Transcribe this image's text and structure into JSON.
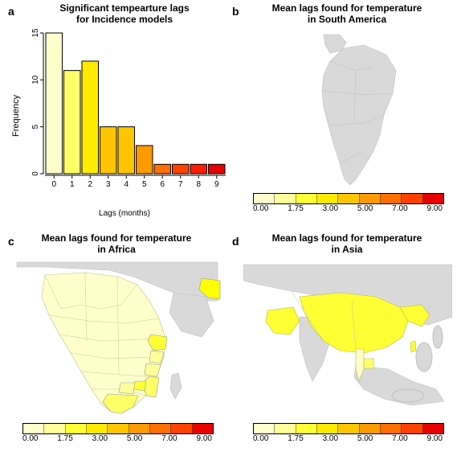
{
  "labels": {
    "a": "a",
    "b": "b",
    "c": "c",
    "d": "d"
  },
  "panel_a": {
    "type": "histogram",
    "title": "Significant tempearture lags\nfor Incidence models",
    "xlabel": "Lags (months)",
    "ylabel": "Frequency",
    "xlim": [
      0,
      9
    ],
    "ylim": [
      0,
      15
    ],
    "ytick_step": 5,
    "yticks": [
      0,
      5,
      10,
      15
    ],
    "categories": [
      0,
      1,
      2,
      3,
      4,
      5,
      6,
      7,
      8,
      9
    ],
    "values": [
      15,
      11,
      12,
      5,
      5,
      3,
      1,
      1,
      1,
      1
    ],
    "bar_colors": [
      "#ffffcc",
      "#ffff66",
      "#ffeb00",
      "#ffc600",
      "#ffc600",
      "#ff9a00",
      "#ff6e00",
      "#ff4200",
      "#ff1c00",
      "#e60000"
    ],
    "bar_border": "#000000",
    "background": "#ffffff",
    "axis_color": "#000000",
    "title_fontsize": 12,
    "label_fontsize": 11
  },
  "panel_b": {
    "type": "map",
    "title": "Mean lags found for temperature\nin South America",
    "base_fill": "#d9d9d9",
    "base_stroke": "#bfbfbf",
    "highlighted": [],
    "region_colors": {}
  },
  "panel_c": {
    "type": "map",
    "title": "Mean lags found for temperature\nin Africa",
    "base_fill": "#d9d9d9",
    "base_stroke": "#bfbfbf",
    "highlighted": [
      "africa_block",
      "ethiopia",
      "kenya",
      "tanzania",
      "mozambique",
      "zimbabwe",
      "botswana",
      "south_africa",
      "iran"
    ],
    "region_colors": {
      "africa_block": "#ffffcc",
      "ethiopia": "#ffff33",
      "kenya": "#ffff99",
      "tanzania": "#ffff99",
      "mozambique": "#ffff66",
      "zimbabwe": "#ffff33",
      "botswana": "#ffff99",
      "south_africa": "#ffff66",
      "iran": "#ffff00"
    }
  },
  "panel_d": {
    "type": "map",
    "title": "Mean lags found for temperature\nin Asia",
    "base_fill": "#d9d9d9",
    "base_stroke": "#bfbfbf",
    "highlighted": [
      "china",
      "taiwan",
      "cambodia",
      "thailand",
      "pakistan_afghan",
      "ne_china"
    ],
    "region_colors": {
      "china": "#ffff33",
      "taiwan": "#ffff33",
      "cambodia": "#ffff66",
      "thailand": "#ffffcc",
      "pakistan_afghan": "#ffff33",
      "ne_china": "#ffff33"
    }
  },
  "palette": {
    "colors": [
      "#ffffcc",
      "#ffff99",
      "#ffff33",
      "#ffeb00",
      "#ffc600",
      "#ff9a00",
      "#ff6e00",
      "#ff4200",
      "#e60000"
    ],
    "ticks": [
      "0.00",
      "1.75",
      "3.00",
      "5.00",
      "7.00",
      "9.00"
    ]
  }
}
